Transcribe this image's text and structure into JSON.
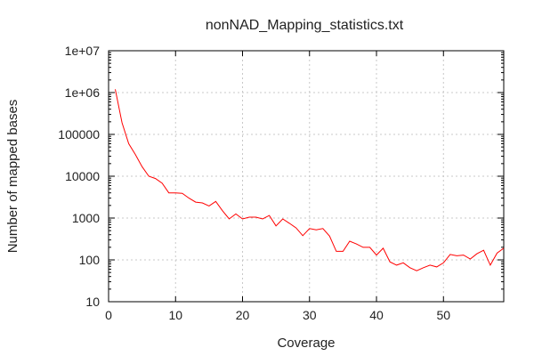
{
  "chart_data": {
    "type": "line",
    "title": "nonNAD_Mapping_statistics.txt",
    "xlabel": "Coverage",
    "ylabel": "Number of mapped bases",
    "xlim": [
      0,
      59
    ],
    "ylim": [
      10,
      10000000
    ],
    "yscale": "log",
    "grid": true,
    "legend": "none",
    "x_ticks": [
      0,
      10,
      20,
      30,
      40,
      50
    ],
    "y_ticks": [
      {
        "value": 10,
        "label": "10"
      },
      {
        "value": 100,
        "label": "100"
      },
      {
        "value": 1000,
        "label": "1000"
      },
      {
        "value": 10000,
        "label": "10000"
      },
      {
        "value": 100000,
        "label": "100000"
      },
      {
        "value": 1000000,
        "label": "1e+06"
      },
      {
        "value": 10000000,
        "label": "1e+07"
      }
    ],
    "series": [
      {
        "color": "#ff0000",
        "x": [
          1,
          2,
          3,
          4,
          5,
          6,
          7,
          8,
          9,
          10,
          11,
          12,
          13,
          14,
          15,
          16,
          17,
          18,
          19,
          20,
          21,
          22,
          23,
          24,
          25,
          26,
          27,
          28,
          29,
          30,
          31,
          32,
          33,
          34,
          35,
          36,
          37,
          38,
          39,
          40,
          41,
          42,
          43,
          44,
          45,
          46,
          47,
          48,
          49,
          50,
          51,
          52,
          53,
          54,
          55,
          56,
          57,
          58,
          59
        ],
        "y": [
          1200000,
          190000,
          60000,
          33000,
          17000,
          10000,
          8800,
          6800,
          4000,
          4000,
          3900,
          3000,
          2400,
          2300,
          1950,
          2500,
          1500,
          950,
          1250,
          950,
          1050,
          1050,
          950,
          1150,
          650,
          950,
          750,
          580,
          380,
          560,
          520,
          560,
          370,
          160,
          160,
          280,
          240,
          200,
          200,
          130,
          190,
          90,
          75,
          85,
          65,
          55,
          65,
          75,
          68,
          85,
          135,
          125,
          130,
          105,
          140,
          170,
          75,
          145,
          190
        ]
      }
    ]
  }
}
